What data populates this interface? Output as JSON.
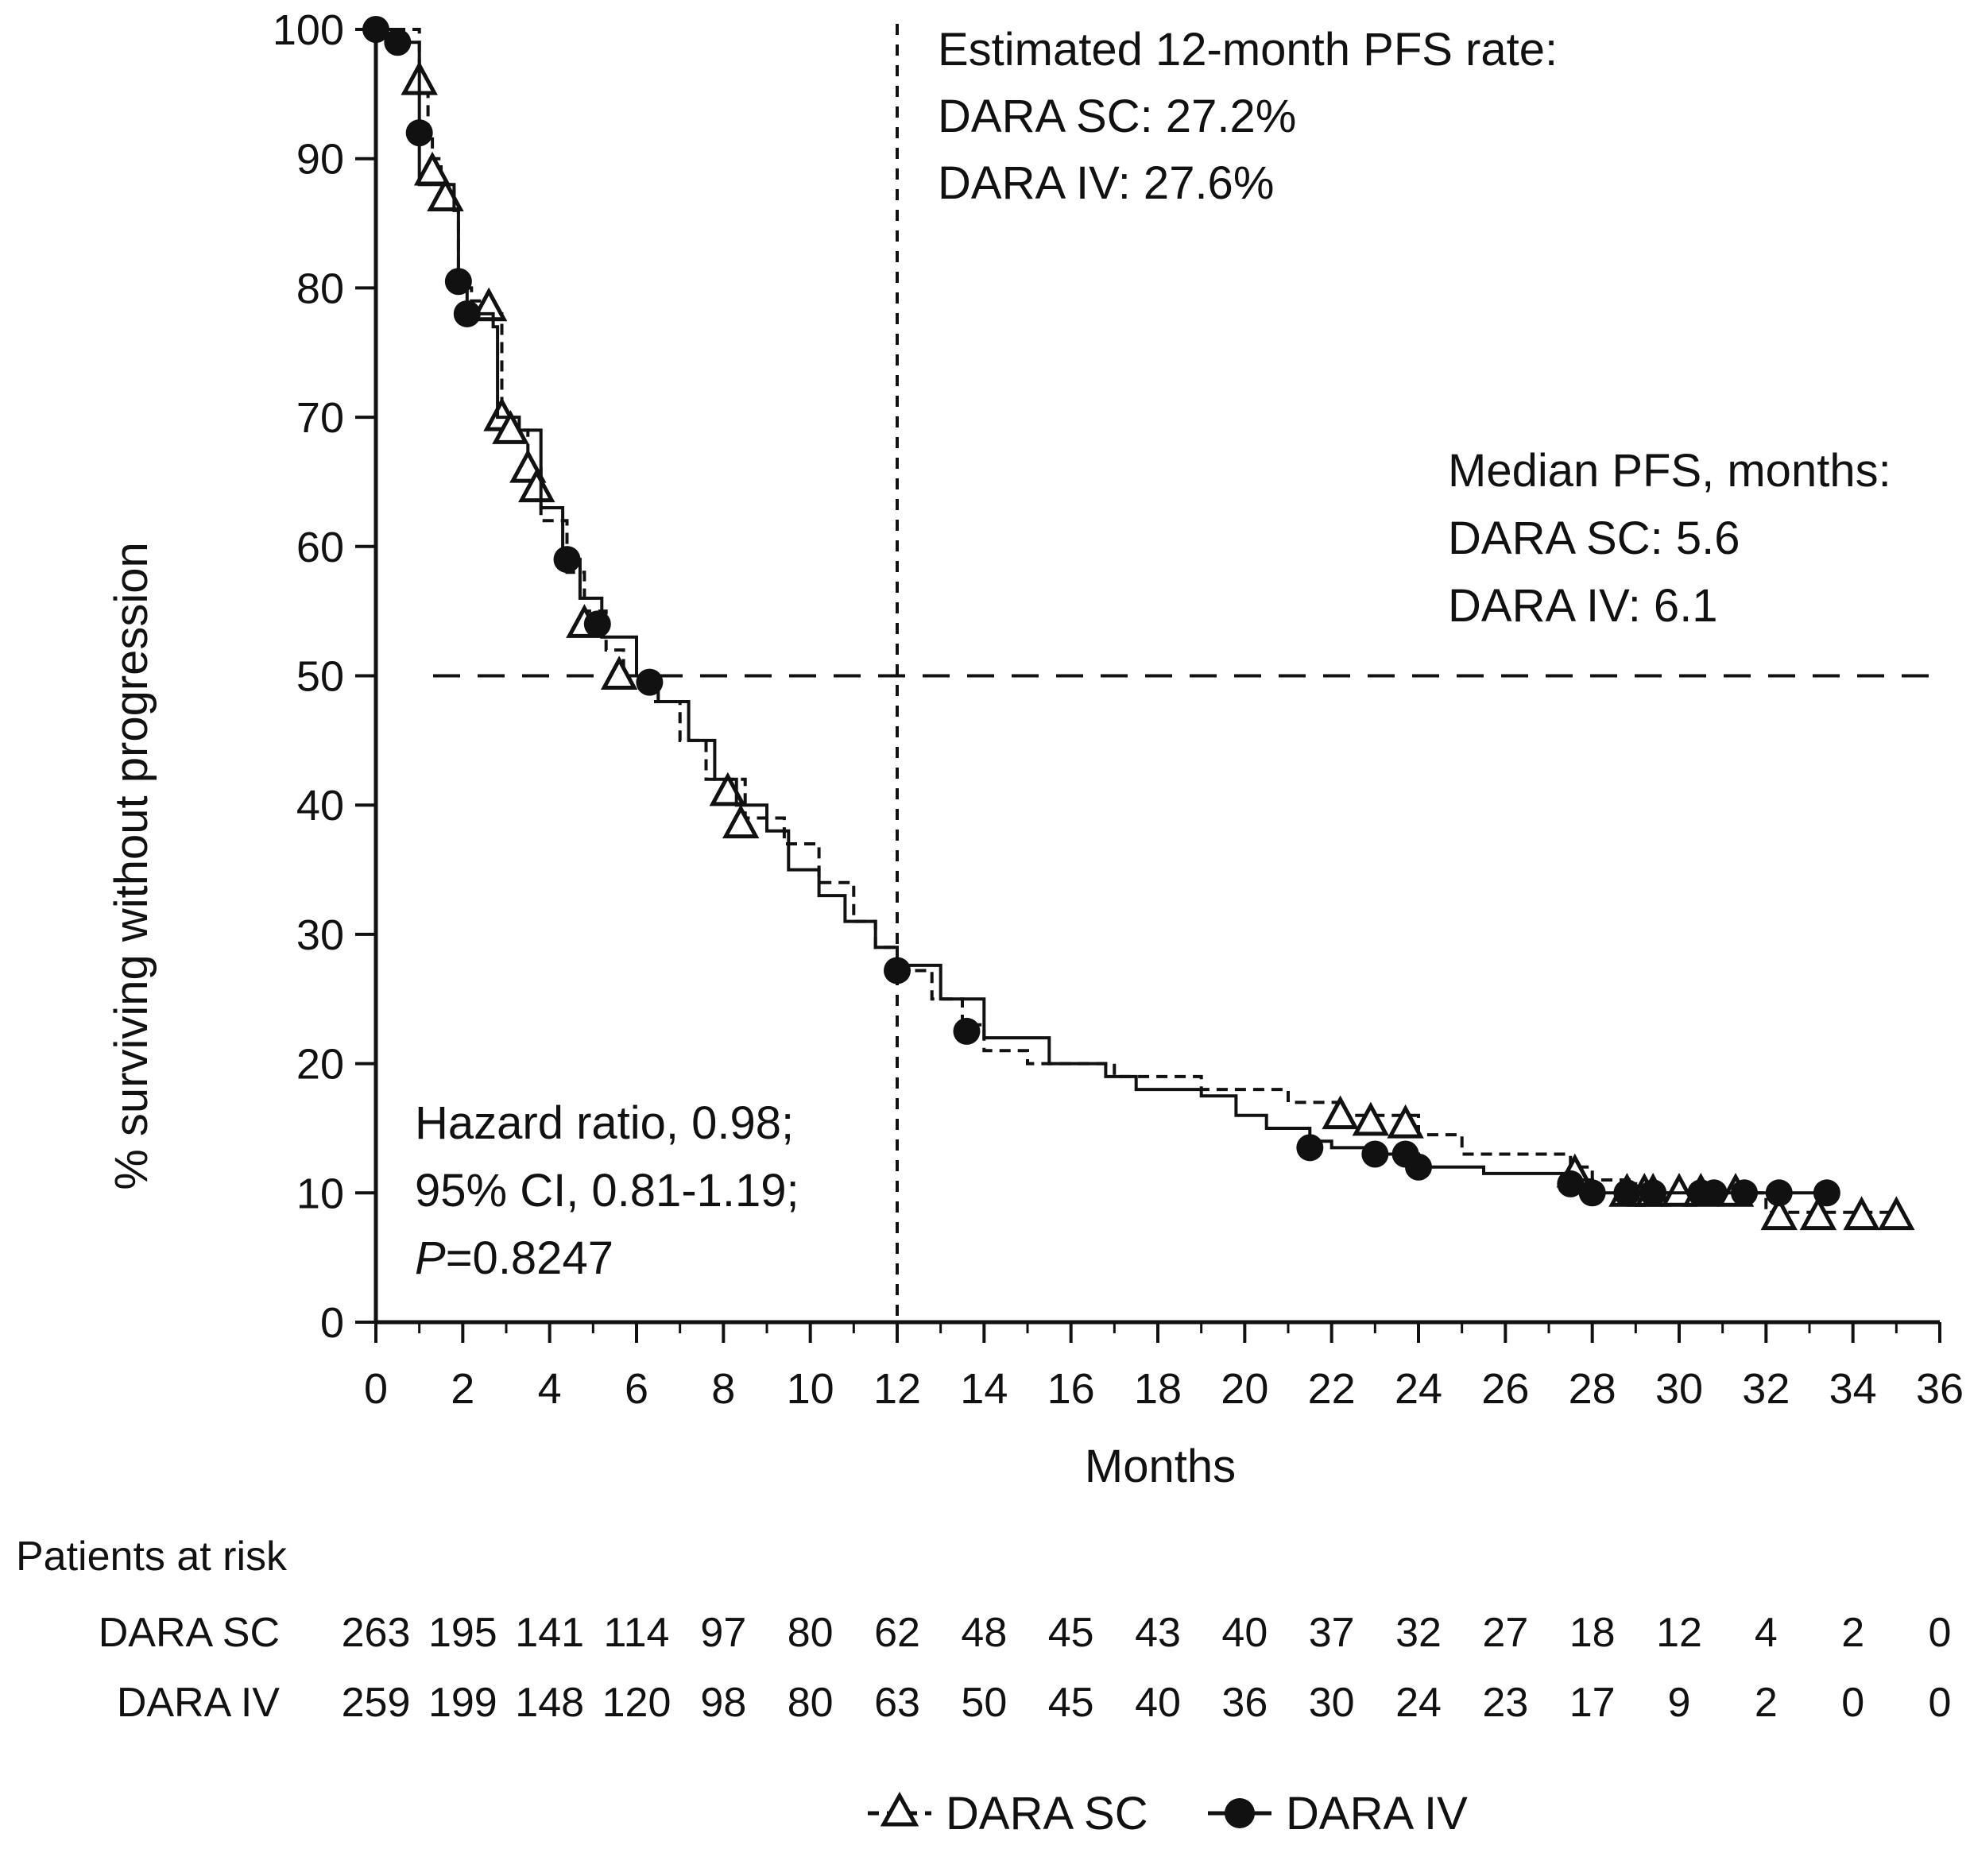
{
  "chart_data": {
    "type": "line",
    "subtype": "kaplan-meier",
    "title": "",
    "xlabel": "Months",
    "ylabel": "% surviving without progression",
    "xlim": [
      0,
      36
    ],
    "ylim": [
      0,
      100
    ],
    "x_ticks": [
      0,
      2,
      4,
      6,
      8,
      10,
      12,
      14,
      16,
      18,
      20,
      22,
      24,
      26,
      28,
      30,
      32,
      34,
      36
    ],
    "y_ticks": [
      0,
      10,
      20,
      30,
      40,
      50,
      60,
      70,
      80,
      90,
      100
    ],
    "grid": false,
    "legend_position": "bottom-center",
    "reference_lines": {
      "horizontal_y": 50,
      "vertical_x": 12
    },
    "series": [
      {
        "name": "DARA SC",
        "marker": "open-triangle",
        "line_style": "dashed",
        "color": "#111111",
        "steps": [
          [
            0,
            100
          ],
          [
            1,
            99
          ],
          [
            1,
            96
          ],
          [
            1.2,
            92
          ],
          [
            1.3,
            90
          ],
          [
            1.5,
            88
          ],
          [
            1.8,
            86
          ],
          [
            1.9,
            80
          ],
          [
            2.2,
            79
          ],
          [
            2.7,
            78
          ],
          [
            2.9,
            70
          ],
          [
            3.2,
            69
          ],
          [
            3.5,
            66
          ],
          [
            3.8,
            62
          ],
          [
            4.4,
            58
          ],
          [
            4.8,
            55
          ],
          [
            5.3,
            52
          ],
          [
            5.7,
            50
          ],
          [
            6.4,
            48
          ],
          [
            7,
            45
          ],
          [
            7.6,
            42
          ],
          [
            8.5,
            39
          ],
          [
            9.4,
            37
          ],
          [
            10.2,
            34
          ],
          [
            11,
            31
          ],
          [
            11.5,
            29
          ],
          [
            12,
            27.2
          ],
          [
            12.8,
            25
          ],
          [
            13.5,
            23
          ],
          [
            14,
            21
          ],
          [
            15,
            20
          ],
          [
            17,
            19
          ],
          [
            19,
            18
          ],
          [
            21,
            17
          ],
          [
            22.2,
            16
          ],
          [
            24,
            14.5
          ],
          [
            25,
            13
          ],
          [
            27.5,
            12
          ],
          [
            28,
            11
          ],
          [
            29,
            10
          ],
          [
            32,
            8.5
          ],
          [
            35,
            8.5
          ]
        ],
        "censored": [
          [
            1,
            96
          ],
          [
            1.3,
            89
          ],
          [
            1.6,
            87
          ],
          [
            2.6,
            78.5
          ],
          [
            2.9,
            70
          ],
          [
            3.1,
            69
          ],
          [
            3.5,
            66
          ],
          [
            3.7,
            64.5
          ],
          [
            4.8,
            54
          ],
          [
            5.6,
            50
          ],
          [
            8.1,
            41
          ],
          [
            8.4,
            38.5
          ],
          [
            22.2,
            16
          ],
          [
            22.9,
            15.5
          ],
          [
            23.7,
            15.3
          ],
          [
            27.6,
            11.5
          ],
          [
            28.8,
            10
          ],
          [
            29.2,
            10
          ],
          [
            29.4,
            10
          ],
          [
            30,
            10
          ],
          [
            30.5,
            10
          ],
          [
            31.3,
            10
          ],
          [
            32.3,
            8.2
          ],
          [
            33.2,
            8.2
          ],
          [
            34.2,
            8.2
          ],
          [
            35,
            8.2
          ]
        ]
      },
      {
        "name": "DARA IV",
        "marker": "filled-circle",
        "line_style": "solid",
        "color": "#111111",
        "steps": [
          [
            0,
            100
          ],
          [
            0.5,
            99
          ],
          [
            1,
            88
          ],
          [
            1.8,
            86
          ],
          [
            1.9,
            80
          ],
          [
            2.1,
            78
          ],
          [
            2.7,
            77
          ],
          [
            2.8,
            70
          ],
          [
            3.3,
            69
          ],
          [
            3.8,
            63
          ],
          [
            4.3,
            59
          ],
          [
            4.7,
            56
          ],
          [
            5.2,
            53
          ],
          [
            6,
            50
          ],
          [
            6.5,
            48
          ],
          [
            7.2,
            45
          ],
          [
            7.8,
            42
          ],
          [
            8.3,
            40
          ],
          [
            9,
            38
          ],
          [
            9.5,
            35
          ],
          [
            10.2,
            33
          ],
          [
            10.8,
            31
          ],
          [
            11.5,
            29
          ],
          [
            12,
            27.6
          ],
          [
            13,
            25
          ],
          [
            14,
            22
          ],
          [
            15.5,
            20
          ],
          [
            16.8,
            19
          ],
          [
            17.5,
            18
          ],
          [
            19,
            17.5
          ],
          [
            19.8,
            16
          ],
          [
            20.5,
            15
          ],
          [
            21.5,
            14
          ],
          [
            22,
            13.5
          ],
          [
            23,
            13
          ],
          [
            24,
            12
          ],
          [
            25.5,
            11.5
          ],
          [
            27.5,
            11
          ],
          [
            28,
            10
          ],
          [
            29,
            10
          ],
          [
            32,
            10
          ],
          [
            33.5,
            10
          ]
        ],
        "censored": [
          [
            0,
            100
          ],
          [
            0.5,
            99
          ],
          [
            1,
            92
          ],
          [
            1.9,
            80.5
          ],
          [
            2.1,
            78
          ],
          [
            4.4,
            59
          ],
          [
            5.1,
            54
          ],
          [
            6.3,
            49.5
          ],
          [
            12,
            27.2
          ],
          [
            13.6,
            22.5
          ],
          [
            21.5,
            13.5
          ],
          [
            23,
            13
          ],
          [
            23.7,
            13
          ],
          [
            24,
            12
          ],
          [
            27.5,
            10.7
          ],
          [
            28,
            10
          ],
          [
            28.8,
            10
          ],
          [
            29.4,
            10
          ],
          [
            30.5,
            10
          ],
          [
            30.8,
            10
          ],
          [
            31.5,
            10
          ],
          [
            32.3,
            10
          ],
          [
            33.4,
            10
          ]
        ]
      }
    ]
  },
  "annotations": {
    "pfs_rate": [
      "Estimated 12-month PFS rate:",
      "DARA SC: 27.2%",
      "DARA IV: 27.6%"
    ],
    "median_pfs": [
      "Median PFS, months:",
      "DARA SC: 5.6",
      "DARA IV: 6.1"
    ],
    "hazard": [
      "Hazard ratio, 0.98;",
      "95% CI, 0.81-1.19;"
    ],
    "p_value": {
      "symbol": "P",
      "value": "=0.8247"
    }
  },
  "risk_table": {
    "heading": "Patients at risk",
    "rows": [
      {
        "label": "DARA SC",
        "values": [
          "263",
          "195",
          "141",
          "114",
          "97",
          "80",
          "62",
          "48",
          "45",
          "43",
          "40",
          "37",
          "32",
          "27",
          "18",
          "12",
          "4",
          "2",
          "0"
        ]
      },
      {
        "label": "DARA IV",
        "values": [
          "259",
          "199",
          "148",
          "120",
          "98",
          "80",
          "63",
          "50",
          "45",
          "40",
          "36",
          "30",
          "24",
          "23",
          "17",
          "9",
          "2",
          "0",
          "0"
        ]
      }
    ]
  },
  "legend": [
    {
      "label": "DARA SC",
      "marker": "open-triangle"
    },
    {
      "label": "DARA IV",
      "marker": "filled-circle"
    }
  ]
}
